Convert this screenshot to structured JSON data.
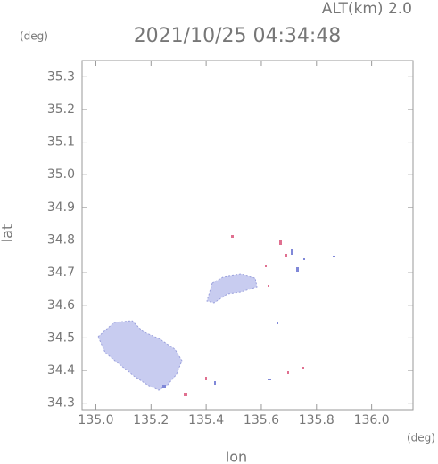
{
  "chart_data": {
    "type": "map",
    "title": "2021/10/25 04:34:48",
    "annotation": "ALT(km) 2.0",
    "xlabel": "lon",
    "ylabel": "lat",
    "xunit": "(deg)",
    "yunit": "(deg)",
    "xlim": [
      134.95,
      136.15
    ],
    "xticks": [
      {
        "value": 135,
        "label": "135.0"
      },
      135.2,
      135.4,
      135.6,
      135.8,
      {
        "value": 136,
        "label": "136.0"
      }
    ],
    "ylim": [
      34.28,
      35.35
    ],
    "yticks": [
      34.3,
      34.4,
      34.5,
      34.6,
      34.7,
      34.8,
      34.9,
      {
        "value": 35,
        "label": "35.0"
      },
      35.1,
      35.2,
      35.3
    ],
    "grid": false
  }
}
